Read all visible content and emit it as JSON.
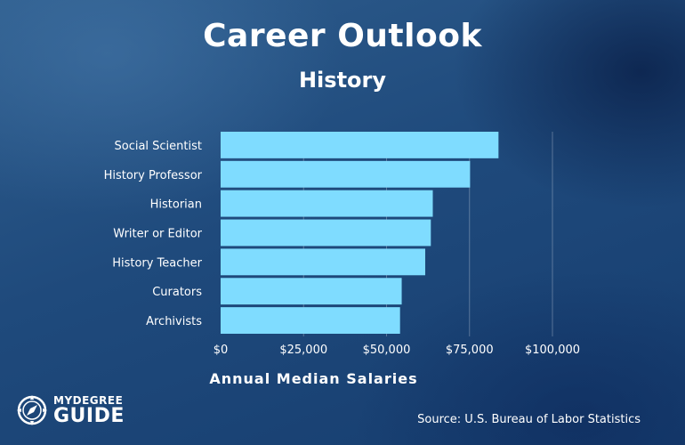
{
  "header": {
    "title": "Career Outlook",
    "subtitle": "History"
  },
  "chart_data": {
    "type": "bar",
    "orientation": "horizontal",
    "title": "Career Outlook",
    "subtitle": "History",
    "xlabel": "Annual Median Salaries",
    "ylabel": "",
    "categories": [
      "Social Scientist",
      "History Professor",
      "Historian",
      "Writer or Editor",
      "History Teacher",
      "Curators",
      "Archivists"
    ],
    "values": [
      83740,
      75170,
      63940,
      63350,
      61660,
      54570,
      54070
    ],
    "xlim": [
      0,
      100000
    ],
    "xticks": [
      0,
      25000,
      50000,
      75000,
      100000
    ],
    "xtick_labels": [
      "$0",
      "$25,000",
      "$50,000",
      "$75,000",
      "$100,000"
    ],
    "bar_color": "#7fdcff",
    "grid": true
  },
  "footer": {
    "source": "Source: U.S. Bureau of Labor Statistics",
    "logo_top": "MYDEGREE",
    "logo_bottom": "GUIDE"
  }
}
